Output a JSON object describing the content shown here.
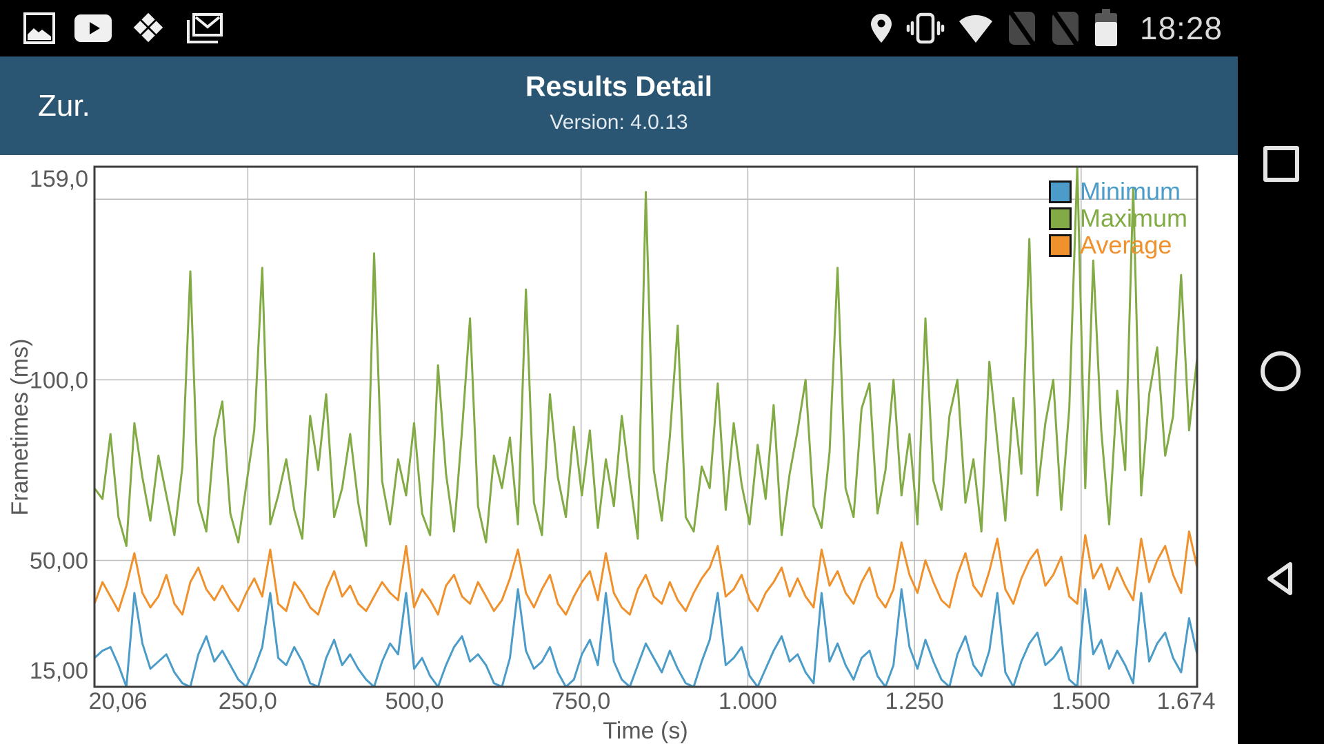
{
  "status_bar": {
    "time": "18:28",
    "dropbox_glyph": "❖",
    "left_icons": [
      "gallery-icon",
      "youtube-icon",
      "dropbox-icon",
      "gmail-icon"
    ],
    "right_icons": [
      "location-icon",
      "vibrate-icon",
      "wifi-icon",
      "no-sim-icon",
      "no-sim-icon",
      "battery-icon"
    ]
  },
  "header": {
    "back_label": "Zur.",
    "title": "Results Detail",
    "subtitle": "Version: 4.0.13"
  },
  "nav_bar": {
    "buttons": [
      "recents",
      "home",
      "back"
    ]
  },
  "colors": {
    "header_bg": "#2a5673",
    "status_bg": "#000000",
    "minimum": "#4b9cc8",
    "maximum": "#82ab45",
    "average": "#ef912c",
    "grid": "#bdbdbd",
    "axis": "#3d3d3d",
    "tick_text": "#5a5a5a"
  },
  "chart_data": {
    "type": "line",
    "title": "",
    "xlabel": "Time (s)",
    "ylabel": "Frametimes (ms)",
    "xlim": [
      20.06,
      1674
    ],
    "ylim": [
      15,
      159
    ],
    "x_start": 20.06,
    "x_step": 11.9851,
    "grid": true,
    "legend_position": "top-right",
    "x_gridlines": [
      250,
      500,
      750,
      1000,
      1250,
      1500
    ],
    "y_gridlines": [
      50,
      100,
      150
    ],
    "x_ticks": [
      {
        "value": 20.06,
        "label": "20,06"
      },
      {
        "value": 250,
        "label": "250,0"
      },
      {
        "value": 500,
        "label": "500,0"
      },
      {
        "value": 750,
        "label": "750,0"
      },
      {
        "value": 1000,
        "label": "1.000"
      },
      {
        "value": 1250,
        "label": "1.250"
      },
      {
        "value": 1500,
        "label": "1.500"
      },
      {
        "value": 1674,
        "label": "1.674"
      }
    ],
    "y_ticks": [
      {
        "value": 159,
        "label": "159,0"
      },
      {
        "value": 100,
        "label": "100,0"
      },
      {
        "value": 50,
        "label": "50,00"
      },
      {
        "value": 15,
        "label": "15,00"
      }
    ],
    "series": [
      {
        "name": "Minimum",
        "color": "#4b9cc8",
        "values": [
          23,
          25,
          26,
          21,
          15,
          41,
          27,
          20,
          22,
          24,
          19,
          16,
          15,
          24,
          29,
          22,
          25,
          21,
          17,
          15,
          20,
          26,
          41,
          23,
          21,
          26,
          22,
          16,
          15,
          23,
          28,
          21,
          24,
          20,
          17,
          15,
          22,
          27,
          24,
          41,
          20,
          23,
          18,
          15,
          21,
          26,
          29,
          22,
          24,
          21,
          16,
          15,
          23,
          42,
          25,
          20,
          22,
          26,
          19,
          15,
          17,
          24,
          28,
          21,
          41,
          22,
          17,
          15,
          21,
          27,
          23,
          19,
          25,
          20,
          16,
          15,
          22,
          28,
          41,
          21,
          23,
          26,
          18,
          15,
          20,
          25,
          29,
          22,
          24,
          19,
          16,
          41,
          22,
          27,
          21,
          17,
          23,
          25,
          18,
          15,
          21,
          42,
          26,
          20,
          28,
          22,
          17,
          15,
          24,
          29,
          21,
          18,
          25,
          41,
          19,
          15,
          22,
          27,
          30,
          21,
          23,
          26,
          17,
          15,
          42,
          24,
          28,
          20,
          25,
          21,
          16,
          41,
          22,
          27,
          30,
          23,
          19,
          34,
          24
        ]
      },
      {
        "name": "Maximum",
        "color": "#82ab45",
        "values": [
          70,
          67,
          85,
          62,
          54,
          88,
          73,
          61,
          79,
          68,
          57,
          76,
          130,
          66,
          58,
          84,
          94,
          63,
          55,
          71,
          86,
          131,
          60,
          68,
          78,
          64,
          56,
          90,
          75,
          96,
          62,
          70,
          85,
          66,
          54,
          135,
          72,
          60,
          78,
          68,
          88,
          63,
          57,
          104,
          74,
          58,
          86,
          117,
          65,
          55,
          79,
          70,
          84,
          60,
          125,
          66,
          57,
          96,
          73,
          62,
          87,
          68,
          86,
          59,
          78,
          65,
          90,
          72,
          56,
          152,
          75,
          61,
          84,
          115,
          62,
          58,
          76,
          70,
          99,
          64,
          88,
          71,
          60,
          82,
          67,
          93,
          57,
          74,
          86,
          100,
          65,
          59,
          80,
          131,
          70,
          62,
          92,
          99,
          63,
          75,
          100,
          68,
          85,
          60,
          117,
          72,
          64,
          90,
          100,
          66,
          78,
          58,
          105,
          83,
          61,
          95,
          74,
          139,
          68,
          88,
          100,
          64,
          92,
          159,
          70,
          133,
          86,
          60,
          97,
          75,
          153,
          68,
          96,
          109,
          79,
          90,
          129,
          86,
          106
        ]
      },
      {
        "name": "Average",
        "color": "#ef912c",
        "values": [
          38,
          44,
          40,
          36,
          43,
          52,
          41,
          37,
          40,
          46,
          38,
          35,
          44,
          48,
          42,
          39,
          43,
          39,
          36,
          41,
          45,
          40,
          53,
          38,
          36,
          44,
          41,
          37,
          35,
          42,
          47,
          40,
          43,
          38,
          36,
          40,
          44,
          41,
          39,
          54,
          37,
          42,
          39,
          35,
          43,
          46,
          40,
          38,
          44,
          40,
          36,
          39,
          45,
          53,
          41,
          37,
          42,
          46,
          38,
          35,
          40,
          44,
          47,
          39,
          52,
          41,
          37,
          35,
          42,
          46,
          40,
          38,
          44,
          39,
          36,
          41,
          45,
          48,
          54,
          40,
          42,
          46,
          39,
          36,
          41,
          44,
          48,
          40,
          45,
          40,
          37,
          53,
          43,
          47,
          41,
          38,
          44,
          48,
          40,
          37,
          42,
          55,
          46,
          41,
          50,
          44,
          39,
          37,
          46,
          52,
          43,
          40,
          47,
          56,
          42,
          38,
          45,
          50,
          53,
          43,
          46,
          51,
          40,
          38,
          57,
          45,
          49,
          42,
          48,
          43,
          39,
          56,
          44,
          50,
          54,
          46,
          41,
          58,
          48
        ]
      }
    ]
  }
}
